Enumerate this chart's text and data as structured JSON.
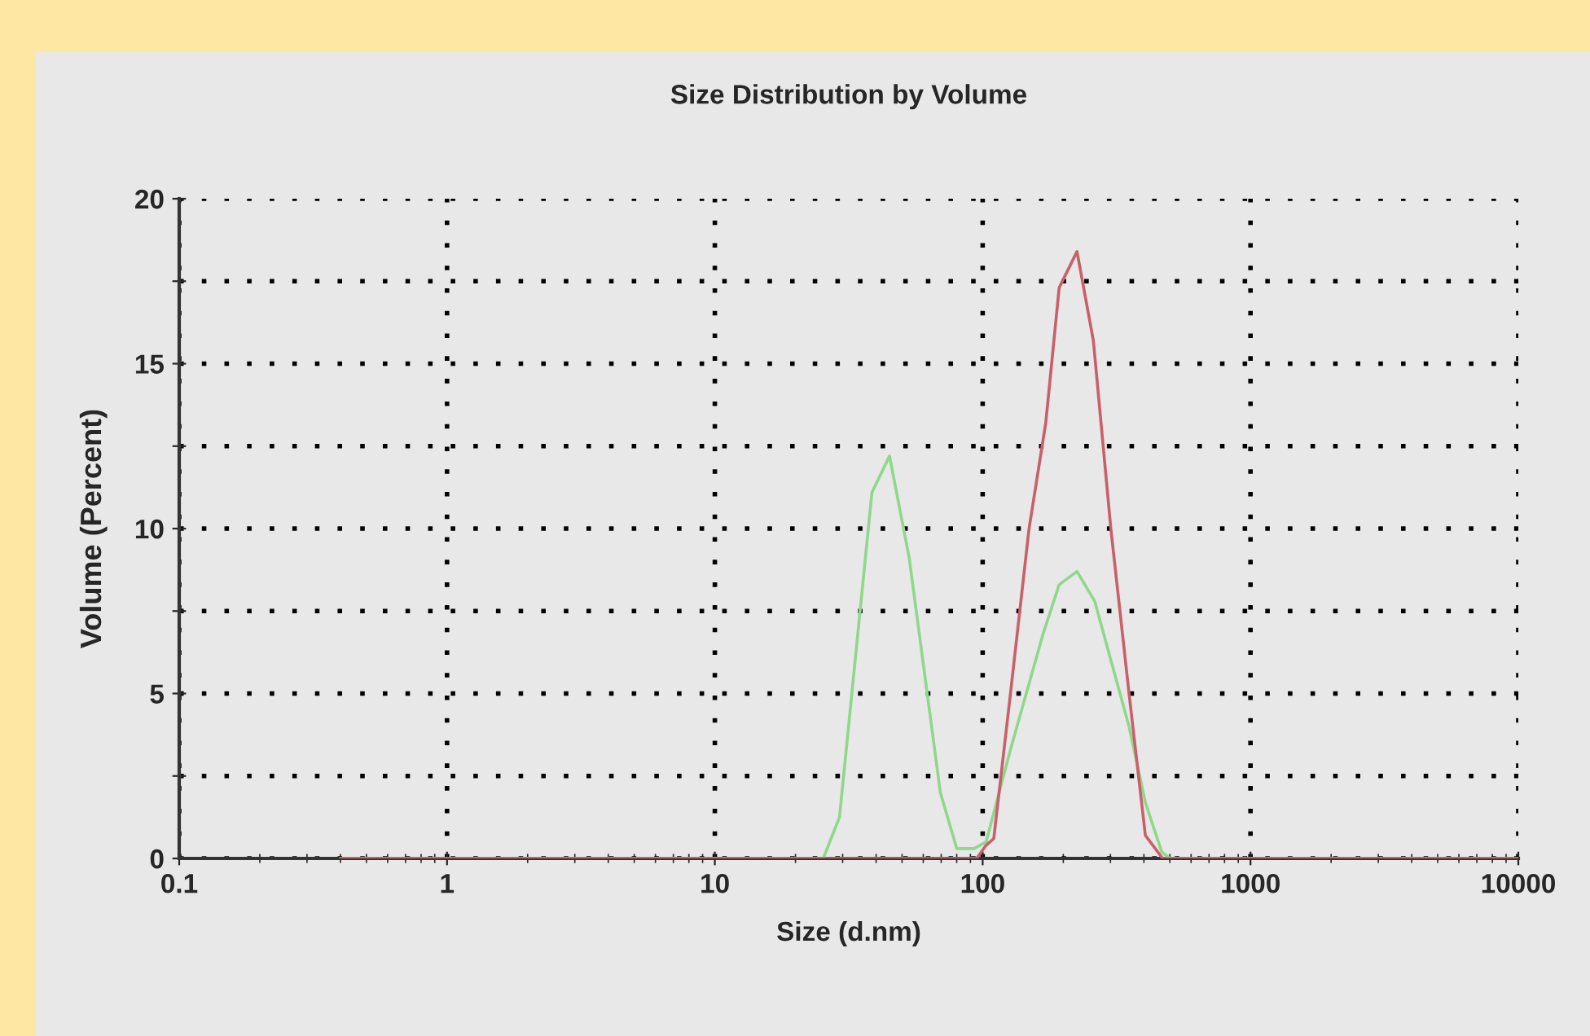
{
  "chart_data": {
    "type": "line",
    "title": "Size Distribution by Volume",
    "xlabel": "Size (d.nm)",
    "ylabel": "Volume (Percent)",
    "log": "x",
    "xlim": [
      0.1,
      10000
    ],
    "xticks": [
      0.1,
      1,
      10,
      100,
      1000,
      10000
    ],
    "ylim": [
      0,
      20
    ],
    "yticks": [
      0,
      {
        "value": 2.5,
        "label": null
      },
      5,
      {
        "value": 7.5,
        "label": null
      },
      10,
      {
        "value": 12.5,
        "label": null
      },
      15,
      {
        "value": 17.5,
        "label": null
      },
      20
    ],
    "grid": true,
    "line_style": "solid",
    "marker": "none",
    "series": [
      {
        "color": "#8fd88a",
        "x": [
          0.4,
          25.4,
          29.2,
          38.6,
          44.9,
          53.2,
          69.5,
          80,
          93,
          103,
          127,
          168,
          193,
          225,
          262,
          352,
          405,
          466,
          500,
          10000
        ],
        "values": [
          0,
          0,
          1.25,
          11.1,
          12.2,
          9.1,
          2.0,
          0.3,
          0.3,
          0.5,
          3.3,
          6.8,
          8.3,
          8.7,
          7.8,
          4.0,
          1.7,
          0.2,
          0,
          0
        ]
      },
      {
        "color": "#c8606a",
        "x": [
          0.4,
          95,
          103,
          110,
          127,
          149,
          172,
          193,
          225,
          259,
          301,
          352,
          405,
          470,
          10000
        ],
        "values": [
          0,
          0,
          0.4,
          0.6,
          5.0,
          10.0,
          13.2,
          17.3,
          18.4,
          15.7,
          10.0,
          5.0,
          0.7,
          0,
          0
        ]
      }
    ]
  }
}
